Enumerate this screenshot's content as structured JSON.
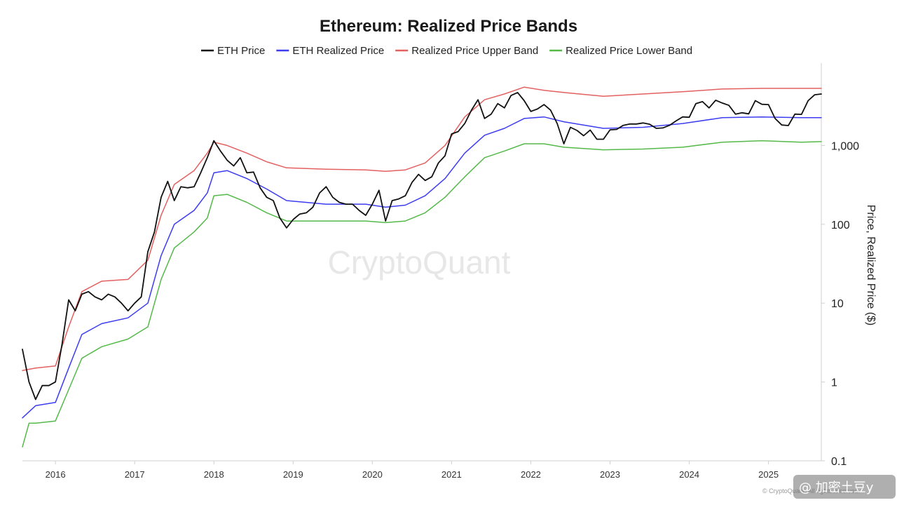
{
  "chart_data": {
    "type": "line",
    "title": "Ethereum: Realized Price Bands",
    "ylabel": "Price, Realized Price ($)",
    "xlabel": "",
    "y_scale": "log",
    "ylim": [
      0.1,
      10000
    ],
    "xlim": [
      "2015-08",
      "2025-09"
    ],
    "x_ticks": [
      "2016",
      "2017",
      "2018",
      "2019",
      "2020",
      "2021",
      "2022",
      "2023",
      "2024",
      "2025"
    ],
    "y_ticks": [
      {
        "value": 0.1,
        "label": "0.1"
      },
      {
        "value": 1,
        "label": "1"
      },
      {
        "value": 10,
        "label": "10"
      },
      {
        "value": 100,
        "label": "100"
      },
      {
        "value": 1000,
        "label": "1,000"
      }
    ],
    "grid": false,
    "legend_position": "top-center",
    "watermark": "CryptoQuant",
    "credit": "© CryptoQuant. All rights reserved.",
    "signature": "@ 加密土豆y",
    "series": [
      {
        "name": "ETH Price",
        "color": "#111111",
        "points": [
          [
            "2015-08",
            2.6
          ],
          [
            "2015-09",
            1.0
          ],
          [
            "2015-10",
            0.6
          ],
          [
            "2015-11",
            0.9
          ],
          [
            "2015-12",
            0.9
          ],
          [
            "2016-01",
            1.0
          ],
          [
            "2016-02",
            3.0
          ],
          [
            "2016-03",
            11
          ],
          [
            "2016-04",
            8
          ],
          [
            "2016-05",
            13
          ],
          [
            "2016-06",
            14
          ],
          [
            "2016-07",
            12
          ],
          [
            "2016-08",
            11
          ],
          [
            "2016-09",
            13
          ],
          [
            "2016-10",
            12
          ],
          [
            "2016-11",
            10
          ],
          [
            "2016-12",
            8
          ],
          [
            "2017-01",
            10
          ],
          [
            "2017-02",
            12
          ],
          [
            "2017-03",
            45
          ],
          [
            "2017-04",
            80
          ],
          [
            "2017-05",
            220
          ],
          [
            "2017-06",
            350
          ],
          [
            "2017-07",
            200
          ],
          [
            "2017-08",
            300
          ],
          [
            "2017-09",
            290
          ],
          [
            "2017-10",
            300
          ],
          [
            "2017-11",
            450
          ],
          [
            "2017-12",
            700
          ],
          [
            "2018-01",
            1150
          ],
          [
            "2018-02",
            850
          ],
          [
            "2018-03",
            650
          ],
          [
            "2018-04",
            550
          ],
          [
            "2018-05",
            700
          ],
          [
            "2018-06",
            450
          ],
          [
            "2018-07",
            460
          ],
          [
            "2018-08",
            290
          ],
          [
            "2018-09",
            220
          ],
          [
            "2018-10",
            200
          ],
          [
            "2018-11",
            120
          ],
          [
            "2018-12",
            90
          ],
          [
            "2019-01",
            115
          ],
          [
            "2019-02",
            135
          ],
          [
            "2019-03",
            140
          ],
          [
            "2019-04",
            165
          ],
          [
            "2019-05",
            250
          ],
          [
            "2019-06",
            300
          ],
          [
            "2019-07",
            220
          ],
          [
            "2019-08",
            190
          ],
          [
            "2019-09",
            180
          ],
          [
            "2019-10",
            180
          ],
          [
            "2019-11",
            150
          ],
          [
            "2019-12",
            130
          ],
          [
            "2020-01",
            180
          ],
          [
            "2020-02",
            270
          ],
          [
            "2020-03",
            110
          ],
          [
            "2020-04",
            200
          ],
          [
            "2020-05",
            210
          ],
          [
            "2020-06",
            230
          ],
          [
            "2020-07",
            340
          ],
          [
            "2020-08",
            430
          ],
          [
            "2020-09",
            360
          ],
          [
            "2020-10",
            400
          ],
          [
            "2020-11",
            600
          ],
          [
            "2020-12",
            740
          ],
          [
            "2021-01",
            1400
          ],
          [
            "2021-02",
            1500
          ],
          [
            "2021-03",
            1900
          ],
          [
            "2021-04",
            2800
          ],
          [
            "2021-05",
            3800
          ],
          [
            "2021-06",
            2200
          ],
          [
            "2021-07",
            2500
          ],
          [
            "2021-08",
            3400
          ],
          [
            "2021-09",
            3000
          ],
          [
            "2021-10",
            4300
          ],
          [
            "2021-11",
            4700
          ],
          [
            "2021-12",
            3700
          ],
          [
            "2022-01",
            2700
          ],
          [
            "2022-02",
            2900
          ],
          [
            "2022-03",
            3300
          ],
          [
            "2022-04",
            2800
          ],
          [
            "2022-05",
            1900
          ],
          [
            "2022-06",
            1050
          ],
          [
            "2022-07",
            1700
          ],
          [
            "2022-08",
            1550
          ],
          [
            "2022-09",
            1330
          ],
          [
            "2022-10",
            1570
          ],
          [
            "2022-11",
            1200
          ],
          [
            "2022-12",
            1200
          ],
          [
            "2023-01",
            1580
          ],
          [
            "2023-02",
            1600
          ],
          [
            "2023-03",
            1800
          ],
          [
            "2023-04",
            1870
          ],
          [
            "2023-05",
            1870
          ],
          [
            "2023-06",
            1930
          ],
          [
            "2023-07",
            1860
          ],
          [
            "2023-08",
            1650
          ],
          [
            "2023-09",
            1670
          ],
          [
            "2023-10",
            1800
          ],
          [
            "2023-11",
            2050
          ],
          [
            "2023-12",
            2300
          ],
          [
            "2024-01",
            2280
          ],
          [
            "2024-02",
            3400
          ],
          [
            "2024-03",
            3600
          ],
          [
            "2024-04",
            3000
          ],
          [
            "2024-05",
            3750
          ],
          [
            "2024-06",
            3450
          ],
          [
            "2024-07",
            3230
          ],
          [
            "2024-08",
            2500
          ],
          [
            "2024-09",
            2600
          ],
          [
            "2024-10",
            2520
          ],
          [
            "2024-11",
            3700
          ],
          [
            "2024-12",
            3330
          ],
          [
            "2025-01",
            3300
          ],
          [
            "2025-02",
            2200
          ],
          [
            "2025-03",
            1820
          ],
          [
            "2025-04",
            1790
          ],
          [
            "2025-05",
            2500
          ],
          [
            "2025-06",
            2480
          ],
          [
            "2025-07",
            3700
          ],
          [
            "2025-08",
            4400
          ],
          [
            "2025-09",
            4500
          ]
        ]
      },
      {
        "name": "ETH Realized Price",
        "color": "#3c3cf0",
        "points": [
          [
            "2015-08",
            0.35
          ],
          [
            "2015-10",
            0.5
          ],
          [
            "2016-01",
            0.55
          ],
          [
            "2016-03",
            1.5
          ],
          [
            "2016-05",
            4
          ],
          [
            "2016-08",
            5.5
          ],
          [
            "2016-12",
            6.5
          ],
          [
            "2017-03",
            10
          ],
          [
            "2017-05",
            40
          ],
          [
            "2017-07",
            100
          ],
          [
            "2017-10",
            150
          ],
          [
            "2017-12",
            250
          ],
          [
            "2018-01",
            450
          ],
          [
            "2018-03",
            480
          ],
          [
            "2018-06",
            380
          ],
          [
            "2018-09",
            280
          ],
          [
            "2018-12",
            200
          ],
          [
            "2019-06",
            180
          ],
          [
            "2019-12",
            180
          ],
          [
            "2020-03",
            165
          ],
          [
            "2020-06",
            175
          ],
          [
            "2020-09",
            230
          ],
          [
            "2020-12",
            380
          ],
          [
            "2021-03",
            800
          ],
          [
            "2021-06",
            1350
          ],
          [
            "2021-09",
            1650
          ],
          [
            "2021-12",
            2200
          ],
          [
            "2022-03",
            2300
          ],
          [
            "2022-06",
            2000
          ],
          [
            "2022-12",
            1650
          ],
          [
            "2023-06",
            1700
          ],
          [
            "2023-12",
            1900
          ],
          [
            "2024-06",
            2250
          ],
          [
            "2024-12",
            2300
          ],
          [
            "2025-06",
            2250
          ],
          [
            "2025-09",
            2250
          ]
        ]
      },
      {
        "name": "Realized Price Upper Band",
        "color": "#e36060",
        "points": [
          [
            "2015-08",
            1.4
          ],
          [
            "2015-10",
            1.5
          ],
          [
            "2016-01",
            1.6
          ],
          [
            "2016-03",
            5
          ],
          [
            "2016-05",
            14
          ],
          [
            "2016-08",
            19
          ],
          [
            "2016-12",
            20
          ],
          [
            "2017-03",
            35
          ],
          [
            "2017-05",
            130
          ],
          [
            "2017-07",
            320
          ],
          [
            "2017-10",
            480
          ],
          [
            "2017-12",
            800
          ],
          [
            "2018-01",
            1100
          ],
          [
            "2018-03",
            1000
          ],
          [
            "2018-06",
            800
          ],
          [
            "2018-09",
            620
          ],
          [
            "2018-12",
            520
          ],
          [
            "2019-06",
            500
          ],
          [
            "2019-12",
            490
          ],
          [
            "2020-03",
            470
          ],
          [
            "2020-06",
            490
          ],
          [
            "2020-09",
            600
          ],
          [
            "2020-12",
            1000
          ],
          [
            "2021-03",
            2300
          ],
          [
            "2021-06",
            3800
          ],
          [
            "2021-09",
            4500
          ],
          [
            "2021-12",
            5500
          ],
          [
            "2022-03",
            5000
          ],
          [
            "2022-06",
            4700
          ],
          [
            "2022-12",
            4200
          ],
          [
            "2023-06",
            4500
          ],
          [
            "2023-12",
            4800
          ],
          [
            "2024-06",
            5200
          ],
          [
            "2024-12",
            5300
          ],
          [
            "2025-06",
            5300
          ],
          [
            "2025-09",
            5300
          ]
        ]
      },
      {
        "name": "Realized Price Lower Band",
        "color": "#55b94a",
        "points": [
          [
            "2015-08",
            0.15
          ],
          [
            "2015-09",
            0.3
          ],
          [
            "2015-10",
            0.3
          ],
          [
            "2016-01",
            0.32
          ],
          [
            "2016-03",
            0.8
          ],
          [
            "2016-05",
            2.0
          ],
          [
            "2016-08",
            2.8
          ],
          [
            "2016-12",
            3.5
          ],
          [
            "2017-03",
            5
          ],
          [
            "2017-05",
            20
          ],
          [
            "2017-07",
            50
          ],
          [
            "2017-10",
            80
          ],
          [
            "2017-12",
            120
          ],
          [
            "2018-01",
            230
          ],
          [
            "2018-03",
            240
          ],
          [
            "2018-06",
            190
          ],
          [
            "2018-09",
            140
          ],
          [
            "2018-12",
            110
          ],
          [
            "2019-06",
            110
          ],
          [
            "2019-12",
            110
          ],
          [
            "2020-03",
            105
          ],
          [
            "2020-06",
            110
          ],
          [
            "2020-09",
            140
          ],
          [
            "2020-12",
            220
          ],
          [
            "2021-03",
            400
          ],
          [
            "2021-06",
            700
          ],
          [
            "2021-09",
            850
          ],
          [
            "2021-12",
            1050
          ],
          [
            "2022-03",
            1050
          ],
          [
            "2022-06",
            950
          ],
          [
            "2022-12",
            880
          ],
          [
            "2023-06",
            900
          ],
          [
            "2023-12",
            950
          ],
          [
            "2024-06",
            1100
          ],
          [
            "2024-12",
            1150
          ],
          [
            "2025-06",
            1100
          ],
          [
            "2025-09",
            1120
          ]
        ]
      }
    ]
  }
}
